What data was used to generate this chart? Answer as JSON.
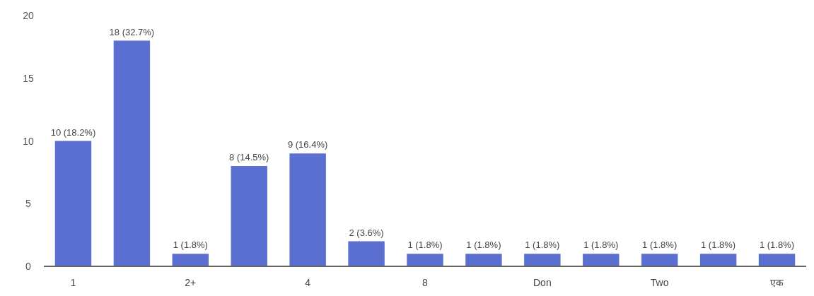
{
  "chart_data": {
    "type": "bar",
    "categories": [
      "1",
      null,
      "2+",
      null,
      "4",
      null,
      "8",
      null,
      "Don",
      null,
      "Two",
      null,
      "एक"
    ],
    "values": [
      10,
      18,
      1,
      8,
      9,
      2,
      1,
      1,
      1,
      1,
      1,
      1,
      1
    ],
    "value_labels": [
      "10 (18.2%)",
      "18 (32.7%)",
      "1 (1.8%)",
      "8 (14.5%)",
      "9 (16.4%)",
      "2 (3.6%)",
      "1 (1.8%)",
      "1 (1.8%)",
      "1 (1.8%)",
      "1 (1.8%)",
      "1 (1.8%)",
      "1 (1.8%)",
      "1 (1.8%)"
    ],
    "color": "#5a6fcf",
    "ylim": [
      0,
      20
    ],
    "yticks": [
      0,
      5,
      10,
      15,
      20
    ]
  }
}
